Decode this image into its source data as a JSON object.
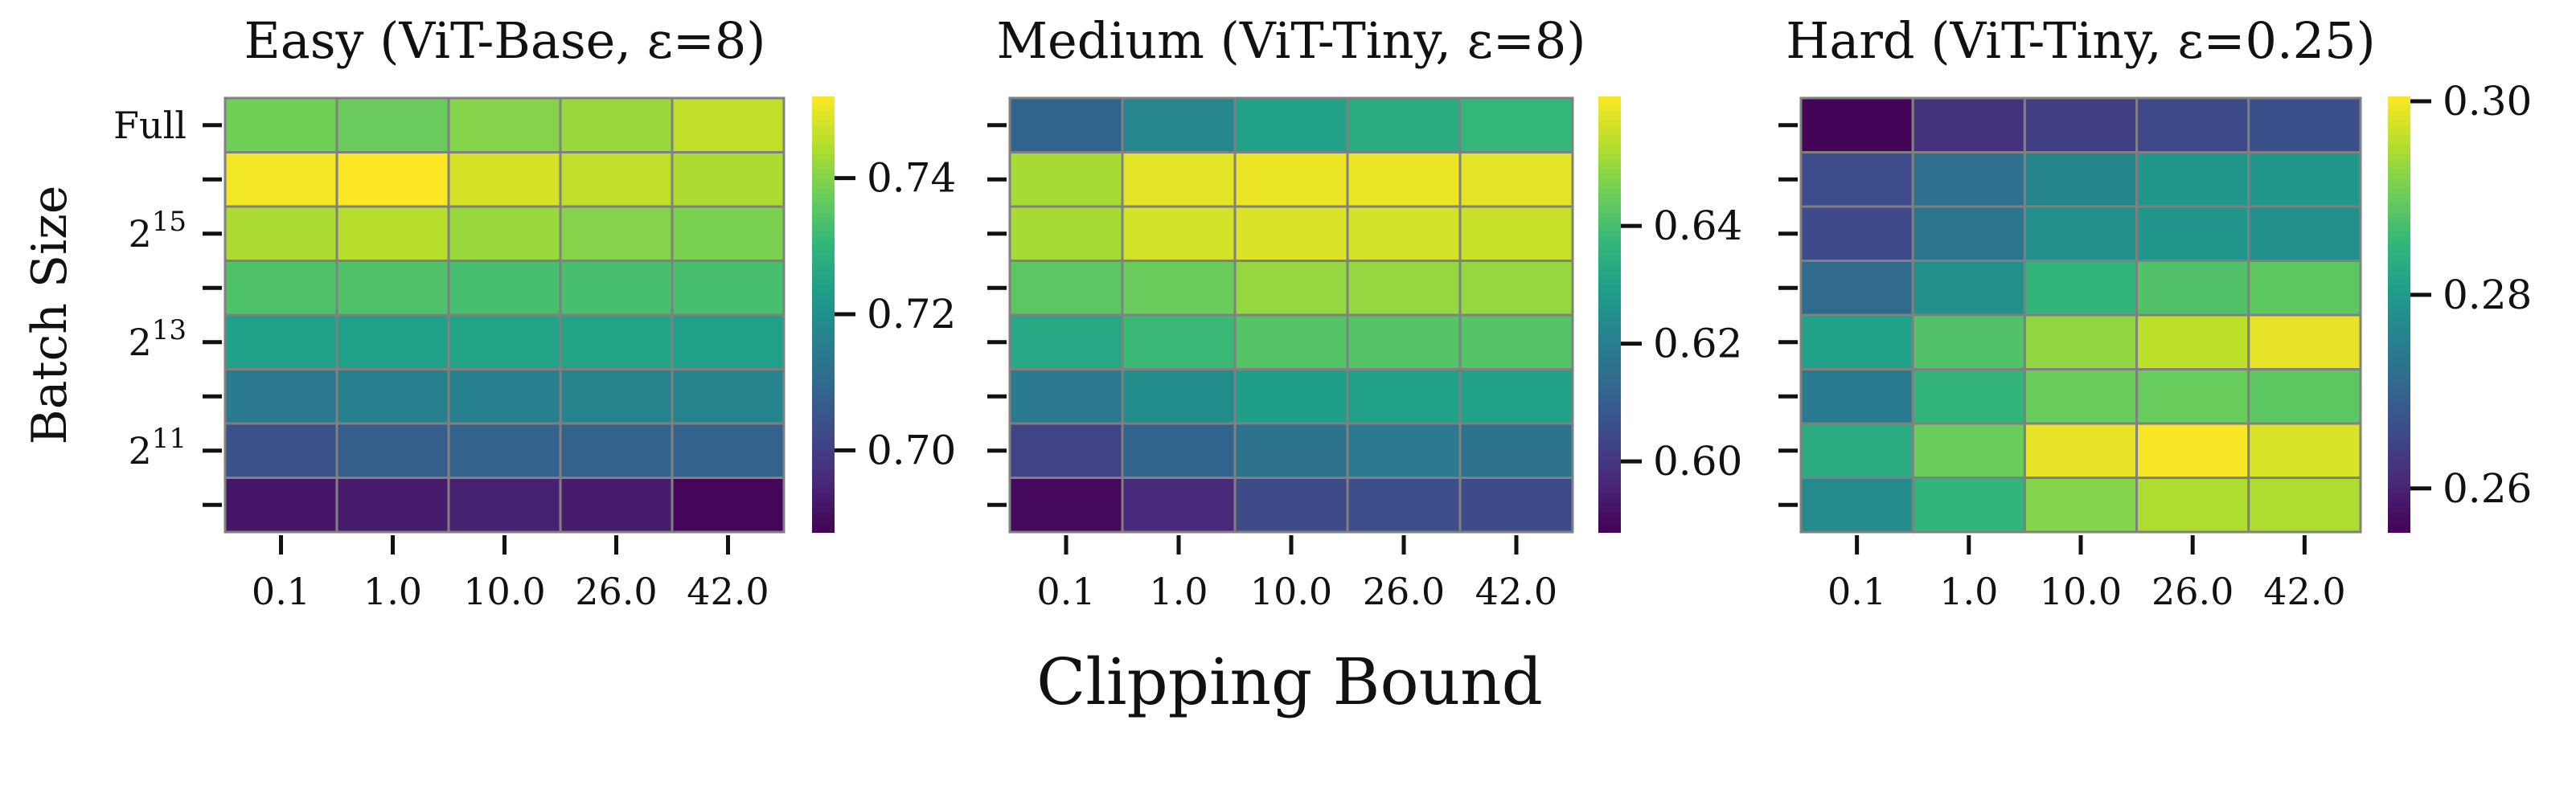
{
  "figure": {
    "xlabel": "Clipping Bound",
    "ylabel": "Batch Size"
  },
  "chart_data": [
    {
      "type": "heatmap",
      "title": "Easy (ViT-Base, ε=8)",
      "x_ticks": [
        "0.1",
        "1.0",
        "10.0",
        "26.0",
        "42.0"
      ],
      "y_ticks": [
        "Full",
        "",
        "2^15",
        "",
        "2^13",
        "",
        "2^11",
        ""
      ],
      "colormap": "viridis",
      "vmin": 0.688,
      "vmax": 0.752,
      "colorbar_ticks": [
        0.7,
        0.72,
        0.74
      ],
      "values": [
        [
          0.738,
          0.737,
          0.74,
          0.742,
          0.746
        ],
        [
          0.751,
          0.752,
          0.748,
          0.746,
          0.744
        ],
        [
          0.744,
          0.745,
          0.742,
          0.74,
          0.739
        ],
        [
          0.734,
          0.734,
          0.733,
          0.733,
          0.733
        ],
        [
          0.724,
          0.724,
          0.725,
          0.725,
          0.724
        ],
        [
          0.714,
          0.716,
          0.716,
          0.717,
          0.717
        ],
        [
          0.704,
          0.707,
          0.708,
          0.708,
          0.708
        ],
        [
          0.692,
          0.693,
          0.694,
          0.693,
          0.689
        ]
      ]
    },
    {
      "type": "heatmap",
      "title": "Medium (ViT-Tiny, ε=8)",
      "x_ticks": [
        "0.1",
        "1.0",
        "10.0",
        "26.0",
        "42.0"
      ],
      "y_ticks": [
        "",
        "",
        "",
        "",
        "",
        "",
        "",
        ""
      ],
      "colormap": "viridis",
      "vmin": 0.588,
      "vmax": 0.662,
      "colorbar_ticks": [
        0.6,
        0.62,
        0.64
      ],
      "values": [
        [
          0.612,
          0.622,
          0.63,
          0.633,
          0.637
        ],
        [
          0.652,
          0.659,
          0.66,
          0.66,
          0.659
        ],
        [
          0.652,
          0.657,
          0.658,
          0.657,
          0.656
        ],
        [
          0.643,
          0.645,
          0.65,
          0.65,
          0.65
        ],
        [
          0.632,
          0.638,
          0.642,
          0.642,
          0.642
        ],
        [
          0.618,
          0.624,
          0.629,
          0.63,
          0.63
        ],
        [
          0.603,
          0.612,
          0.616,
          0.618,
          0.616
        ],
        [
          0.59,
          0.597,
          0.605,
          0.606,
          0.605
        ]
      ]
    },
    {
      "type": "heatmap",
      "title": "Hard (ViT-Tiny, ε=0.25)",
      "x_ticks": [
        "0.1",
        "1.0",
        "10.0",
        "26.0",
        "42.0"
      ],
      "y_ticks": [
        "",
        "",
        "",
        "",
        "",
        "",
        "",
        ""
      ],
      "colormap": "viridis",
      "vmin": 0.2555,
      "vmax": 0.3005,
      "colorbar_ticks": [
        0.26,
        0.28,
        0.3
      ],
      "values": [
        [
          0.256,
          0.262,
          0.264,
          0.2655,
          0.2665
        ],
        [
          0.266,
          0.272,
          0.276,
          0.279,
          0.279
        ],
        [
          0.2655,
          0.273,
          0.278,
          0.279,
          0.278
        ],
        [
          0.271,
          0.278,
          0.285,
          0.288,
          0.289
        ],
        [
          0.281,
          0.288,
          0.293,
          0.296,
          0.299
        ],
        [
          0.274,
          0.285,
          0.29,
          0.29,
          0.289
        ],
        [
          0.283,
          0.29,
          0.299,
          0.3,
          0.298
        ],
        [
          0.277,
          0.285,
          0.292,
          0.295,
          0.295
        ]
      ]
    }
  ]
}
